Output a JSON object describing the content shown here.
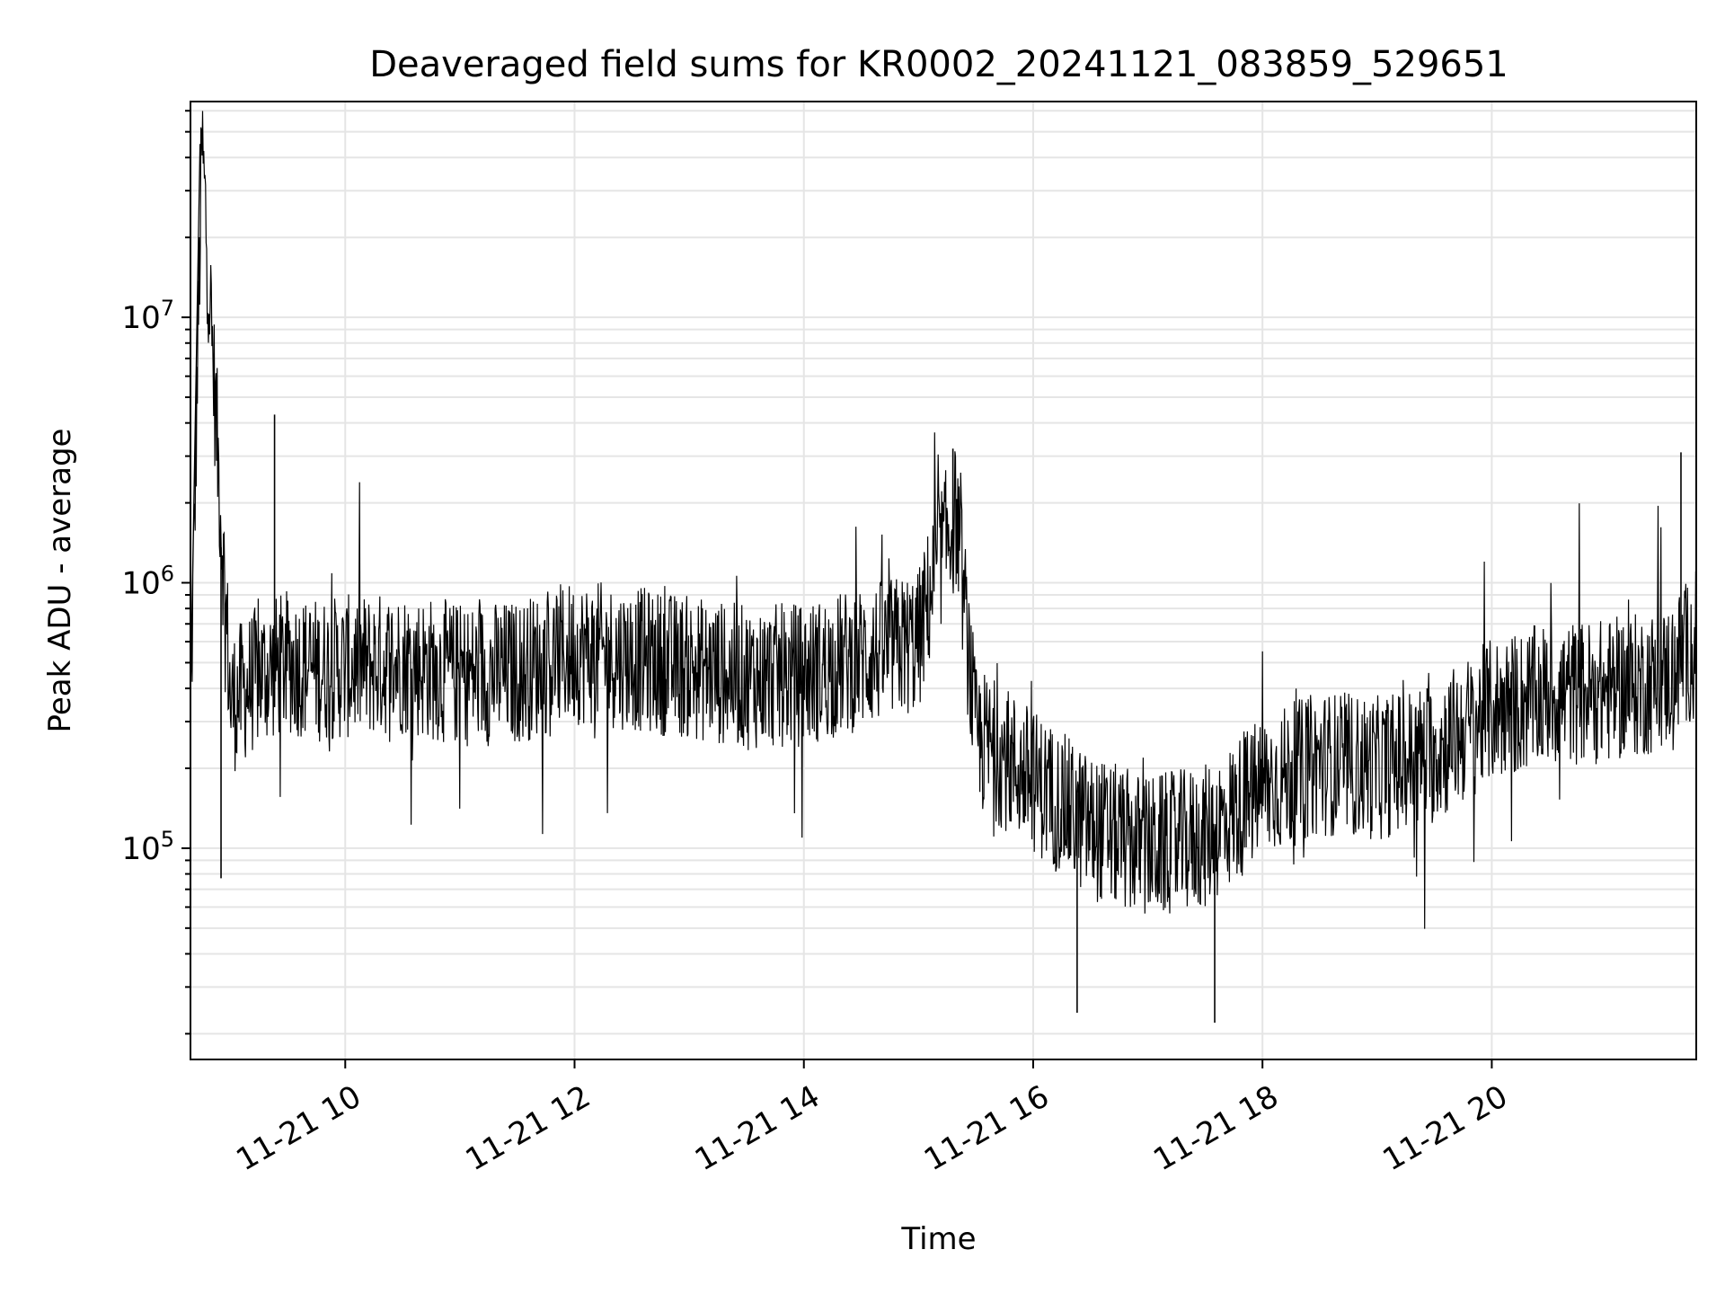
{
  "chart_data": {
    "type": "line",
    "title": "Deaveraged field sums for KR0002_20241121_083859_529651",
    "xlabel": "Time",
    "ylabel": "Peak ADU - average",
    "yscale": "log",
    "xlim": [
      "11-21 08:39",
      "11-21 21:47"
    ],
    "ylim": [
      16000,
      65000000
    ],
    "grid": true,
    "line_color": "#000000",
    "grid_color": "#e5e5e5",
    "x_ticks": [
      "11-21 10",
      "11-21 12",
      "11-21 14",
      "11-21 16",
      "11-21 18",
      "11-21 20"
    ],
    "y_ticks": [
      {
        "base": "10",
        "exp": "5"
      },
      {
        "base": "10",
        "exp": "6"
      },
      {
        "base": "10",
        "exp": "7"
      }
    ],
    "series": [
      {
        "x": [
          "11-21 08:39",
          "11-21 08:45",
          "11-21 09:00",
          "11-21 09:15",
          "11-21 09:30",
          "11-21 09:45",
          "11-21 10:00",
          "11-21 10:30",
          "11-21 11:00",
          "11-21 11:30",
          "11-21 12:00",
          "11-21 12:30",
          "11-21 13:00",
          "11-21 13:30",
          "11-21 14:00",
          "11-21 14:30",
          "11-21 15:00",
          "11-21 15:10",
          "11-21 15:20",
          "11-21 15:30",
          "11-21 15:45",
          "11-21 16:00",
          "11-21 16:30",
          "11-21 17:00",
          "11-21 17:30",
          "11-21 18:00",
          "11-21 18:30",
          "11-21 19:00",
          "11-21 19:30",
          "11-21 20:00",
          "11-21 20:30",
          "11-21 21:00",
          "11-21 21:30",
          "11-21 21:47"
        ],
        "y": [
          300000,
          45000000,
          350000,
          450000,
          500000,
          470000,
          480000,
          500000,
          450000,
          460000,
          550000,
          520000,
          480000,
          440000,
          450000,
          520000,
          600000,
          1200000,
          1800000,
          260000,
          220000,
          180000,
          120000,
          100000,
          110000,
          170000,
          210000,
          200000,
          230000,
          330000,
          380000,
          390000,
          430000,
          600000
        ],
        "spikes": [
          {
            "x": "11-21 09:23",
            "y": 4300000
          },
          {
            "x": "11-21 08:55",
            "y": 77000
          },
          {
            "x": "11-21 15:18",
            "y": 3200000
          },
          {
            "x": "11-21 17:35",
            "y": 22000
          },
          {
            "x": "11-21 16:23",
            "y": 24000
          },
          {
            "x": "11-21 21:39",
            "y": 3100000
          }
        ]
      }
    ]
  }
}
